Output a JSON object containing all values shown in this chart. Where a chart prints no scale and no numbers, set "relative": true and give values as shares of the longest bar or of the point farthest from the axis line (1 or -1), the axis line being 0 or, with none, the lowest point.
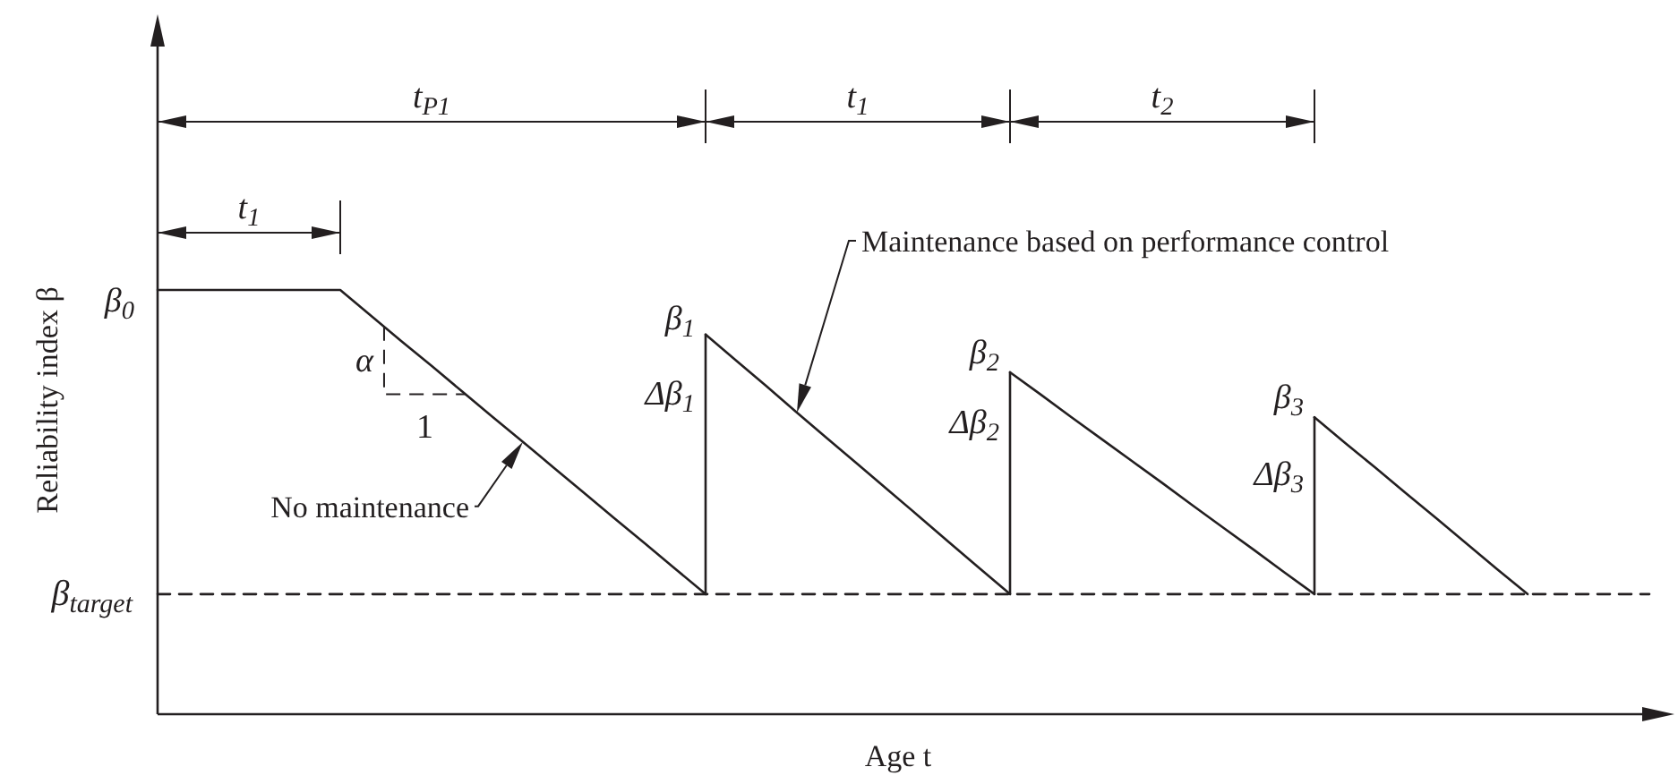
{
  "chart_data": {
    "type": "line",
    "relative": true,
    "xlabel": "Age t",
    "ylabel": "Reliability index β",
    "grid": false,
    "legend": false,
    "marker": "none",
    "line_style": "solid",
    "categories": [
      null,
      null,
      null,
      null,
      null,
      null,
      null,
      null,
      null,
      null,
      null,
      null,
      null,
      null,
      null,
      null,
      null,
      null,
      null,
      null,
      null,
      null,
      null,
      null,
      null,
      null,
      null,
      null,
      null,
      null,
      null,
      null,
      null,
      null,
      null,
      null,
      null,
      null,
      null,
      null,
      null,
      null,
      null,
      null,
      null,
      null,
      null,
      null,
      null,
      null
    ],
    "series": [
      {
        "color": "#231f20",
        "values": [
          1,
          1,
          1,
          1,
          1,
          1,
          1,
          0.94,
          0.88,
          0.821,
          0.761,
          0.701,
          0.642,
          0.582,
          0.522,
          0.462,
          0.403,
          0.343,
          0.283,
          null,
          null,
          null,
          null,
          null,
          null,
          null,
          null,
          null,
          null,
          null,
          null,
          null,
          null,
          null,
          null,
          null,
          null,
          null,
          null,
          null,
          null,
          null,
          null,
          null,
          null,
          null,
          null,
          null,
          null,
          null
        ]
      },
      {
        "color": "#231f20",
        "values": [
          null,
          null,
          null,
          null,
          null,
          null,
          null,
          null,
          null,
          null,
          null,
          null,
          null,
          null,
          null,
          null,
          null,
          null,
          0.895,
          0.834,
          0.773,
          0.711,
          0.65,
          0.589,
          0.528,
          0.467,
          0.405,
          0.344,
          0.283,
          null,
          null,
          null,
          null,
          null,
          null,
          null,
          null,
          null,
          null,
          null,
          null,
          null,
          null,
          null,
          null,
          null,
          null,
          null,
          null,
          null
        ]
      },
      {
        "color": "#231f20",
        "values": [
          null,
          null,
          null,
          null,
          null,
          null,
          null,
          null,
          null,
          null,
          null,
          null,
          null,
          null,
          null,
          null,
          null,
          null,
          null,
          null,
          null,
          null,
          null,
          null,
          null,
          null,
          null,
          null,
          0.806,
          0.754,
          0.701,
          0.649,
          0.597,
          0.545,
          0.492,
          0.44,
          0.388,
          0.335,
          0.283,
          null,
          null,
          null,
          null,
          null,
          null,
          null,
          null,
          null,
          null,
          null
        ]
      },
      {
        "color": "#231f20",
        "values": [
          null,
          null,
          null,
          null,
          null,
          null,
          null,
          null,
          null,
          null,
          null,
          null,
          null,
          null,
          null,
          null,
          null,
          null,
          null,
          null,
          null,
          null,
          null,
          null,
          null,
          null,
          null,
          null,
          null,
          null,
          null,
          null,
          null,
          null,
          null,
          null,
          null,
          null,
          0.7,
          0.64,
          0.581,
          0.521,
          0.462,
          0.402,
          0.342,
          0.283,
          null,
          null,
          null,
          null
        ]
      },
      {
        "name": "β$_{target}$",
        "color": "#231f20",
        "line_style": "dashed",
        "values": [
          0.283,
          0.283,
          0.283,
          0.283,
          0.283,
          0.283,
          0.283,
          0.283,
          0.283,
          0.283,
          0.283,
          0.283,
          0.283,
          0.283,
          0.283,
          0.283,
          0.283,
          0.283,
          0.283,
          0.283,
          0.283,
          0.283,
          0.283,
          0.283,
          0.283,
          0.283,
          0.283,
          0.283,
          0.283,
          0.283,
          0.283,
          0.283,
          0.283,
          0.283,
          0.283,
          0.283,
          0.283,
          0.283,
          0.283,
          0.283,
          0.283,
          0.283,
          0.283,
          0.283,
          0.283,
          0.283,
          0.283,
          0.283,
          0.283,
          0.283
        ]
      }
    ],
    "annotations": [
      "β$_{0}$",
      "β$_{1}$",
      "Δβ$_{1}$",
      "β$_{2}$",
      "Δβ$_{2}$",
      "β$_{3}$",
      "Δβ$_{3}$",
      "α",
      "1",
      "No maintenance",
      "Maintenance based on performance control",
      "t$_{P1}$",
      "t$_{1}$",
      "t$_{2}$",
      "t$_{1}$"
    ]
  }
}
